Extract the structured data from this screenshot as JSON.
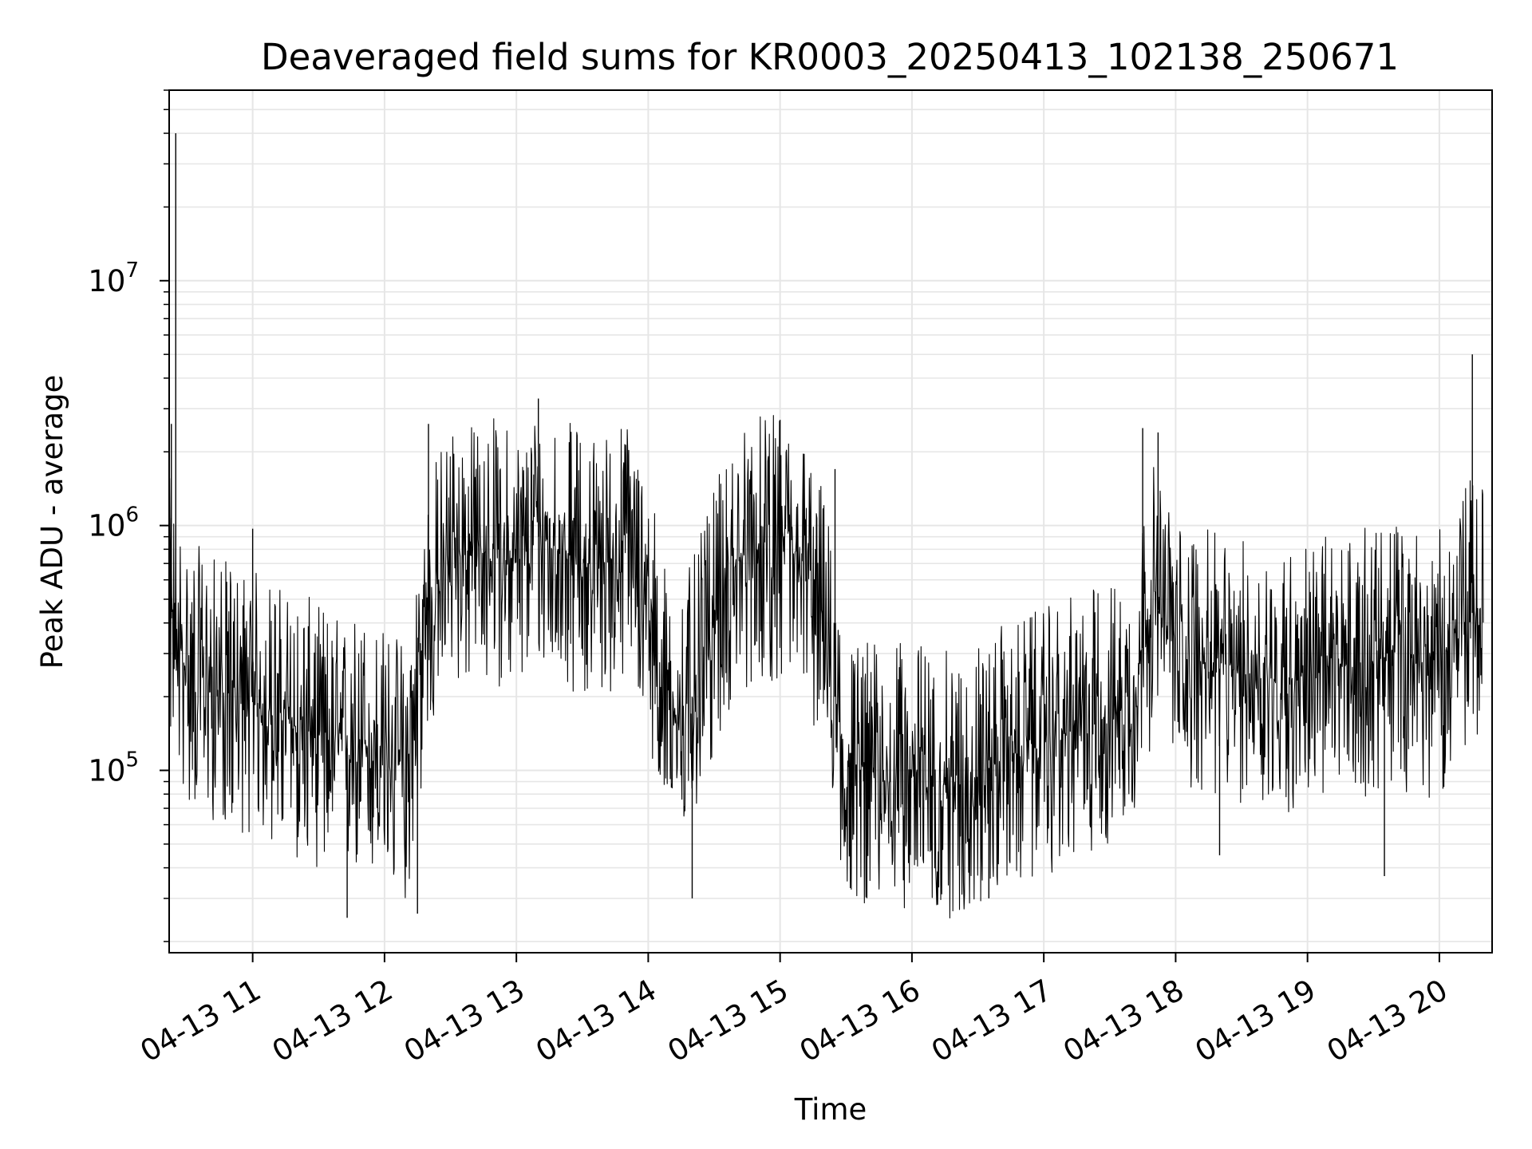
{
  "chart_data": {
    "type": "line",
    "title": "Deaveraged field sums for KR0003_20250413_102138_250671",
    "xlabel": "Time",
    "ylabel": "Peak ADU - average",
    "y_scale": "log",
    "ylim": [
      18000,
      60000000
    ],
    "xlim": [
      "2025-04-13 10:22",
      "2025-04-13 20:24"
    ],
    "grid": true,
    "line_color": "#000000",
    "grid_color": "#e6e6e6",
    "x_ticks": [
      {
        "value": "2025-04-13 11:00",
        "label": "04-13 11"
      },
      {
        "value": "2025-04-13 12:00",
        "label": "04-13 12"
      },
      {
        "value": "2025-04-13 13:00",
        "label": "04-13 13"
      },
      {
        "value": "2025-04-13 14:00",
        "label": "04-13 14"
      },
      {
        "value": "2025-04-13 15:00",
        "label": "04-13 15"
      },
      {
        "value": "2025-04-13 16:00",
        "label": "04-13 16"
      },
      {
        "value": "2025-04-13 17:00",
        "label": "04-13 17"
      },
      {
        "value": "2025-04-13 18:00",
        "label": "04-13 18"
      },
      {
        "value": "2025-04-13 19:00",
        "label": "04-13 19"
      },
      {
        "value": "2025-04-13 20:00",
        "label": "04-13 20"
      }
    ],
    "y_ticks": [
      {
        "value": 100000,
        "base": "10",
        "exp": "5"
      },
      {
        "value": 1000000,
        "base": "10",
        "exp": "6"
      },
      {
        "value": 10000000,
        "base": "10",
        "exp": "7"
      }
    ],
    "series": [
      {
        "x": [
          "2025-04-13 10:22",
          "2025-04-13 10:30",
          "2025-04-13 10:40",
          "2025-04-13 10:50",
          "2025-04-13 11:00",
          "2025-04-13 11:10",
          "2025-04-13 11:20",
          "2025-04-13 11:30",
          "2025-04-13 11:40",
          "2025-04-13 11:50",
          "2025-04-13 12:00",
          "2025-04-13 12:10",
          "2025-04-13 12:20",
          "2025-04-13 12:30",
          "2025-04-13 12:40",
          "2025-04-13 12:50",
          "2025-04-13 13:00",
          "2025-04-13 13:10",
          "2025-04-13 13:20",
          "2025-04-13 13:30",
          "2025-04-13 13:40",
          "2025-04-13 13:50",
          "2025-04-13 14:00",
          "2025-04-13 14:10",
          "2025-04-13 14:20",
          "2025-04-13 14:30",
          "2025-04-13 14:40",
          "2025-04-13 14:50",
          "2025-04-13 15:00",
          "2025-04-13 15:10",
          "2025-04-13 15:20",
          "2025-04-13 15:30",
          "2025-04-13 15:40",
          "2025-04-13 15:50",
          "2025-04-13 16:00",
          "2025-04-13 16:10",
          "2025-04-13 16:20",
          "2025-04-13 16:30",
          "2025-04-13 16:40",
          "2025-04-13 16:50",
          "2025-04-13 17:00",
          "2025-04-13 17:10",
          "2025-04-13 17:20",
          "2025-04-13 17:30",
          "2025-04-13 17:40",
          "2025-04-13 17:50",
          "2025-04-13 18:00",
          "2025-04-13 18:10",
          "2025-04-13 18:20",
          "2025-04-13 18:30",
          "2025-04-13 18:40",
          "2025-04-13 18:50",
          "2025-04-13 19:00",
          "2025-04-13 19:10",
          "2025-04-13 19:20",
          "2025-04-13 19:30",
          "2025-04-13 19:40",
          "2025-04-13 19:50",
          "2025-04-13 20:00",
          "2025-04-13 20:10",
          "2025-04-13 20:20"
        ],
        "y": [
          450000,
          250000,
          220000,
          200000,
          190000,
          170000,
          150000,
          140000,
          120000,
          130000,
          110000,
          100000,
          450000,
          800000,
          750000,
          800000,
          700000,
          900000,
          800000,
          700000,
          700000,
          800000,
          500000,
          150000,
          200000,
          400000,
          700000,
          800000,
          800000,
          700000,
          400000,
          100000,
          100000,
          90000,
          100000,
          90000,
          85000,
          95000,
          110000,
          120000,
          130000,
          140000,
          160000,
          170000,
          200000,
          500000,
          300000,
          280000,
          260000,
          250000,
          240000,
          230000,
          250000,
          260000,
          270000,
          280000,
          300000,
          280000,
          270000,
          420000,
          460000
        ],
        "spikes": [
          {
            "x": "2025-04-13 10:25",
            "y": 40000000
          },
          {
            "x": "2025-04-13 10:23",
            "y": 2600000
          },
          {
            "x": "2025-04-13 11:00",
            "y": 970000
          },
          {
            "x": "2025-04-13 11:43",
            "y": 25000
          },
          {
            "x": "2025-04-13 12:15",
            "y": 26000
          },
          {
            "x": "2025-04-13 12:20",
            "y": 2600000
          },
          {
            "x": "2025-04-13 13:10",
            "y": 3300000
          },
          {
            "x": "2025-04-13 14:20",
            "y": 30000
          },
          {
            "x": "2025-04-13 15:00",
            "y": 2700000
          },
          {
            "x": "2025-04-13 15:25",
            "y": 1700000
          },
          {
            "x": "2025-04-13 16:35",
            "y": 30000
          },
          {
            "x": "2025-04-13 17:45",
            "y": 2500000
          },
          {
            "x": "2025-04-13 17:52",
            "y": 2400000
          },
          {
            "x": "2025-04-13 18:20",
            "y": 45000
          },
          {
            "x": "2025-04-13 19:35",
            "y": 37000
          },
          {
            "x": "2025-04-13 20:15",
            "y": 5000000
          }
        ]
      }
    ]
  }
}
